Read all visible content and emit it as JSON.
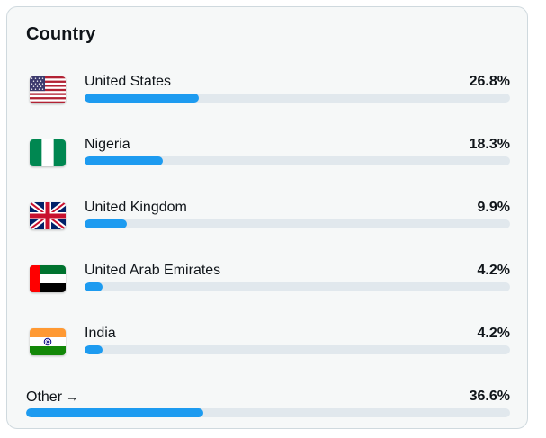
{
  "panel": {
    "title": "Country"
  },
  "countries": [
    {
      "name": "United States",
      "percent_label": "26.8%",
      "percent": 26.8,
      "flag": "us-flag-icon"
    },
    {
      "name": "Nigeria",
      "percent_label": "18.3%",
      "percent": 18.3,
      "flag": "nigeria-flag-icon"
    },
    {
      "name": "United Kingdom",
      "percent_label": "9.9%",
      "percent": 9.9,
      "flag": "uk-flag-icon"
    },
    {
      "name": "United Arab Emirates",
      "percent_label": "4.2%",
      "percent": 4.2,
      "flag": "uae-flag-icon"
    },
    {
      "name": "India",
      "percent_label": "4.2%",
      "percent": 4.2,
      "flag": "india-flag-icon"
    }
  ],
  "other": {
    "label": "Other",
    "arrow": "→",
    "percent_label": "36.6%",
    "percent": 36.6
  },
  "colors": {
    "bar_fill": "#1d9bf0",
    "bar_track": "#e1e8ed",
    "card_bg": "#f6f8f8"
  }
}
